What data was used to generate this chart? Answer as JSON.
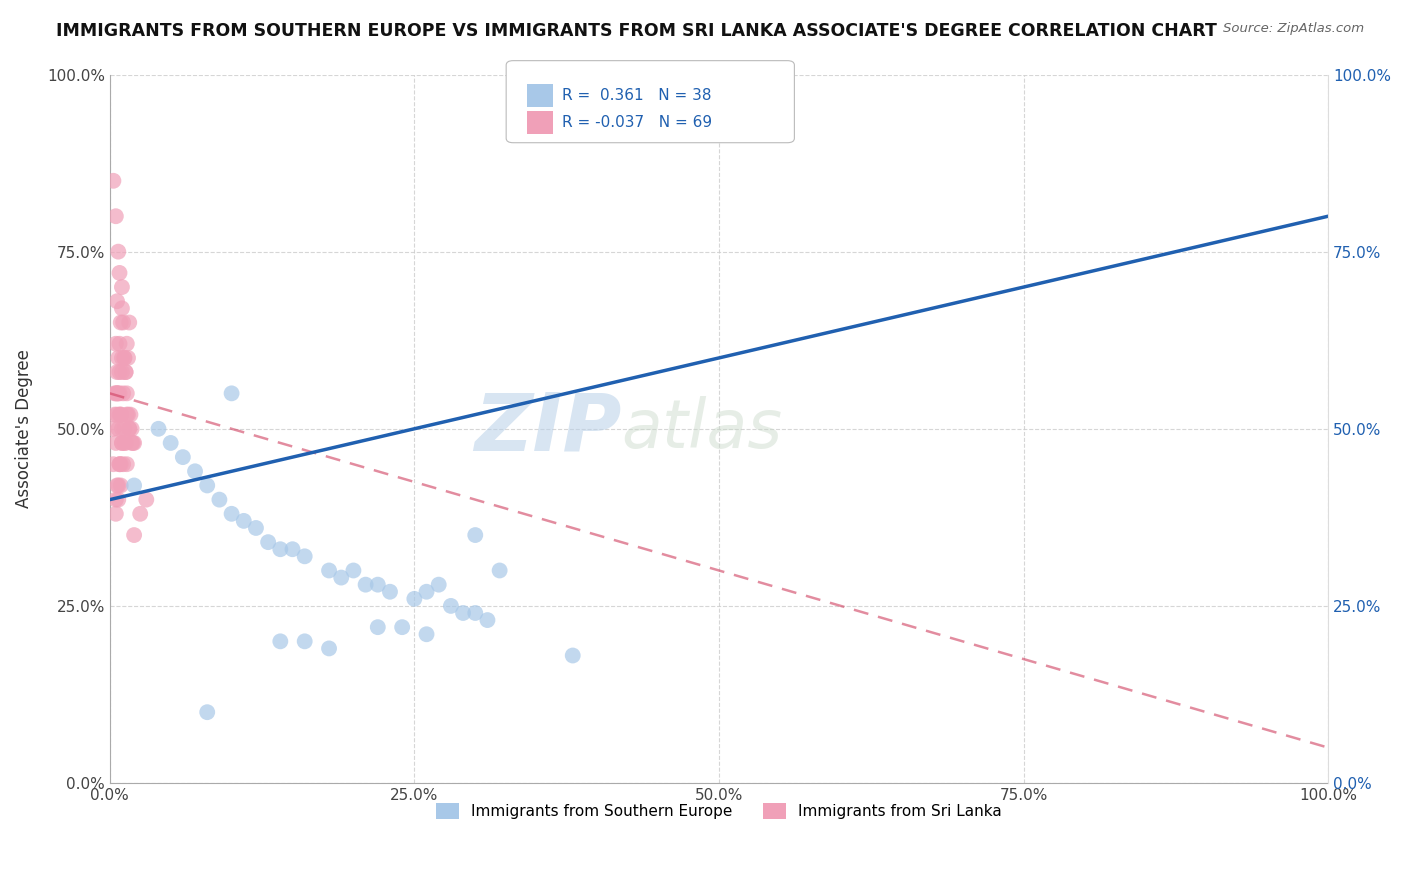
{
  "title": "IMMIGRANTS FROM SOUTHERN EUROPE VS IMMIGRANTS FROM SRI LANKA ASSOCIATE'S DEGREE CORRELATION CHART",
  "source": "Source: ZipAtlas.com",
  "ylabel": "Associate's Degree",
  "xlabel": "",
  "xlim": [
    0.0,
    1.0
  ],
  "ylim": [
    0.0,
    1.0
  ],
  "xtick_labels": [
    "0.0%",
    "25.0%",
    "50.0%",
    "75.0%",
    "100.0%"
  ],
  "xtick_vals": [
    0.0,
    0.25,
    0.5,
    0.75,
    1.0
  ],
  "ytick_labels": [
    "0.0%",
    "25.0%",
    "50.0%",
    "75.0%",
    "100.0%"
  ],
  "ytick_vals": [
    0.0,
    0.25,
    0.5,
    0.75,
    1.0
  ],
  "right_ytick_labels": [
    "0.0%",
    "25.0%",
    "50.0%",
    "75.0%",
    "100.0%"
  ],
  "right_ytick_vals": [
    0.0,
    0.25,
    0.5,
    0.75,
    1.0
  ],
  "legend_R_blue": "0.361",
  "legend_N_blue": "38",
  "legend_R_pink": "-0.037",
  "legend_N_pink": "69",
  "color_blue": "#a8c8e8",
  "color_pink": "#f0a0b8",
  "color_blue_line": "#2060b0",
  "color_pink_line": "#d04060",
  "watermark_left": "ZIP",
  "watermark_right": "atlas",
  "background_color": "#ffffff",
  "grid_color": "#cccccc",
  "blue_line_start_y": 0.4,
  "blue_line_end_y": 0.8,
  "pink_line_start_y": 0.55,
  "pink_line_end_y": 0.05,
  "blue_x": [
    0.02,
    0.04,
    0.05,
    0.06,
    0.07,
    0.08,
    0.09,
    0.1,
    0.11,
    0.12,
    0.13,
    0.14,
    0.15,
    0.16,
    0.18,
    0.19,
    0.2,
    0.21,
    0.22,
    0.23,
    0.25,
    0.26,
    0.27,
    0.28,
    0.29,
    0.3,
    0.31,
    0.22,
    0.24,
    0.26,
    0.14,
    0.16,
    0.18,
    0.38,
    0.08,
    0.1,
    0.3,
    0.32
  ],
  "blue_y": [
    0.42,
    0.5,
    0.48,
    0.46,
    0.44,
    0.42,
    0.4,
    0.38,
    0.37,
    0.36,
    0.34,
    0.33,
    0.33,
    0.32,
    0.3,
    0.29,
    0.3,
    0.28,
    0.28,
    0.27,
    0.26,
    0.27,
    0.28,
    0.25,
    0.24,
    0.24,
    0.23,
    0.22,
    0.22,
    0.21,
    0.2,
    0.2,
    0.19,
    0.18,
    0.1,
    0.55,
    0.35,
    0.3
  ],
  "pink_x": [
    0.005,
    0.006,
    0.007,
    0.008,
    0.009,
    0.01,
    0.011,
    0.012,
    0.013,
    0.014,
    0.015,
    0.016,
    0.017,
    0.018,
    0.019,
    0.02,
    0.008,
    0.01,
    0.012,
    0.014,
    0.016,
    0.018,
    0.006,
    0.008,
    0.01,
    0.012,
    0.014,
    0.006,
    0.008,
    0.01,
    0.005,
    0.007,
    0.009,
    0.003,
    0.005,
    0.007,
    0.02,
    0.025,
    0.03,
    0.005,
    0.007,
    0.009,
    0.011,
    0.013,
    0.003,
    0.004,
    0.006,
    0.008,
    0.01,
    0.005,
    0.007,
    0.009,
    0.003,
    0.005,
    0.007,
    0.009,
    0.011,
    0.013,
    0.015,
    0.008,
    0.01,
    0.012,
    0.014,
    0.016,
    0.006,
    0.008,
    0.01,
    0.004,
    0.006
  ],
  "pink_y": [
    0.55,
    0.58,
    0.6,
    0.62,
    0.65,
    0.67,
    0.65,
    0.6,
    0.58,
    0.55,
    0.52,
    0.5,
    0.52,
    0.5,
    0.48,
    0.48,
    0.45,
    0.48,
    0.5,
    0.52,
    0.5,
    0.48,
    0.55,
    0.52,
    0.5,
    0.48,
    0.45,
    0.42,
    0.45,
    0.48,
    0.4,
    0.42,
    0.45,
    0.85,
    0.8,
    0.75,
    0.35,
    0.38,
    0.4,
    0.38,
    0.4,
    0.42,
    0.45,
    0.48,
    0.5,
    0.52,
    0.55,
    0.58,
    0.6,
    0.62,
    0.55,
    0.52,
    0.45,
    0.48,
    0.5,
    0.52,
    0.55,
    0.58,
    0.6,
    0.55,
    0.58,
    0.6,
    0.62,
    0.65,
    0.68,
    0.72,
    0.7,
    0.55,
    0.52
  ]
}
